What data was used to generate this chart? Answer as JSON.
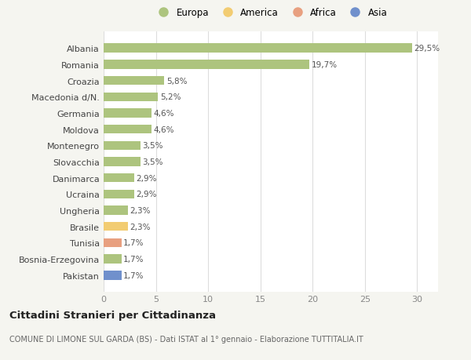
{
  "countries": [
    "Albania",
    "Romania",
    "Croazia",
    "Macedonia d/N.",
    "Germania",
    "Moldova",
    "Montenegro",
    "Slovacchia",
    "Danimarca",
    "Ucraina",
    "Ungheria",
    "Brasile",
    "Tunisia",
    "Bosnia-Erzegovina",
    "Pakistan"
  ],
  "values": [
    29.5,
    19.7,
    5.8,
    5.2,
    4.6,
    4.6,
    3.5,
    3.5,
    2.9,
    2.9,
    2.3,
    2.3,
    1.7,
    1.7,
    1.7
  ],
  "labels": [
    "29,5%",
    "19,7%",
    "5,8%",
    "5,2%",
    "4,6%",
    "4,6%",
    "3,5%",
    "3,5%",
    "2,9%",
    "2,9%",
    "2,3%",
    "2,3%",
    "1,7%",
    "1,7%",
    "1,7%"
  ],
  "colors": [
    "#adc47e",
    "#adc47e",
    "#adc47e",
    "#adc47e",
    "#adc47e",
    "#adc47e",
    "#adc47e",
    "#adc47e",
    "#adc47e",
    "#adc47e",
    "#adc47e",
    "#f2cc72",
    "#e8a080",
    "#adc47e",
    "#7090cc"
  ],
  "legend_labels": [
    "Europa",
    "America",
    "Africa",
    "Asia"
  ],
  "legend_colors": [
    "#adc47e",
    "#f2cc72",
    "#e8a080",
    "#7090cc"
  ],
  "title": "Cittadini Stranieri per Cittadinanza",
  "subtitle": "COMUNE DI LIMONE SUL GARDA (BS) - Dati ISTAT al 1° gennaio - Elaborazione TUTTITALIA.IT",
  "xlim": [
    0,
    32
  ],
  "xticks": [
    0,
    5,
    10,
    15,
    20,
    25,
    30
  ],
  "background_color": "#f5f5f0",
  "bar_background": "#ffffff",
  "grid_color": "#dddddd"
}
